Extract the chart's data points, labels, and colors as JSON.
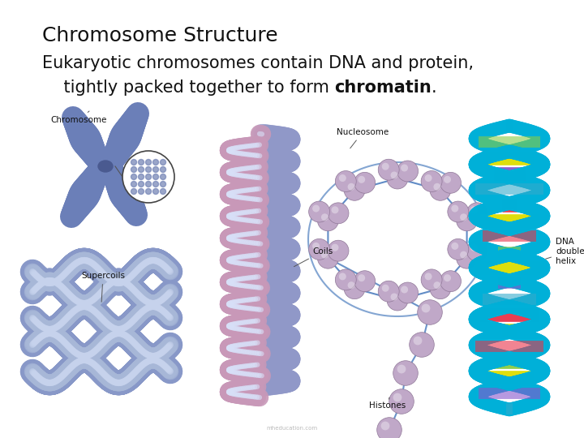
{
  "title": "Chromosome Structure",
  "sub1": "Eukaryotic chromosomes contain DNA and protein,",
  "sub2_pre": "    tightly packed together to form ",
  "sub2_bold": "chromatin",
  "sub2_post": ".",
  "bg": "#ffffff",
  "title_fs": 18,
  "sub_fs": 15,
  "label_fs": 7.5,
  "title_color": "#111111",
  "sub_color": "#111111",
  "label_color": "#111111",
  "chrom_color": "#6b7fb8",
  "chrom_dark": "#4a5a90",
  "supercoil_color": "#8090c0",
  "supercoil_light": "#a0b0d0",
  "coil_color1": "#9098c8",
  "coil_color2": "#c898b8",
  "bead_color": "#c0a8c8",
  "string_color": "#5080c0",
  "dna_strand": "#00b0d8",
  "dna_rungs": [
    "#e8334a",
    "#88cc44",
    "#dddd00",
    "#8855cc",
    "#33aacc",
    "#e8334a",
    "#dddd00"
  ],
  "watermark": "mheducation.com"
}
